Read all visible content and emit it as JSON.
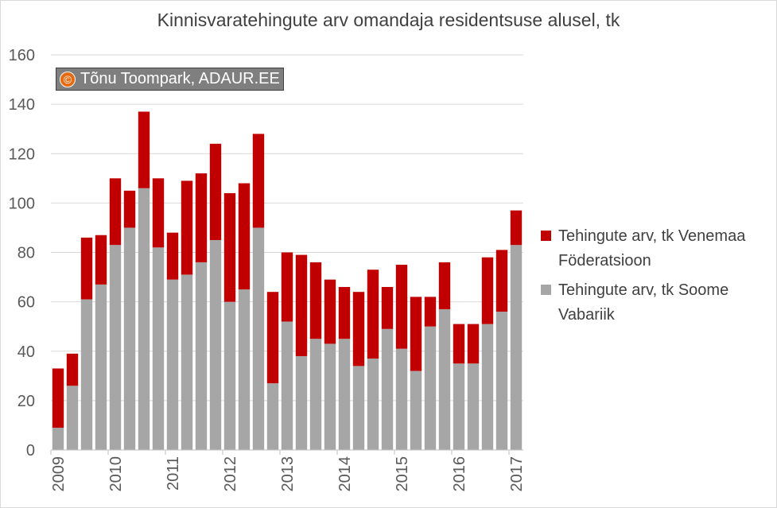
{
  "title": "Kinnisvaratehingute arv omandaja residentsuse alusel, tk",
  "watermark": {
    "symbol": "©",
    "text": "Tõnu Toompark, ADAUR.EE"
  },
  "colors": {
    "venemaa": "#c00000",
    "soome": "#a6a6a6",
    "grid": "#d9d9d9",
    "axis_text": "#595959"
  },
  "chart_data": {
    "type": "bar",
    "stacked": true,
    "ylim": [
      0,
      160
    ],
    "yticks": [
      0,
      20,
      40,
      60,
      80,
      100,
      120,
      140,
      160
    ],
    "grid": true,
    "legend": "right",
    "year_labels": [
      {
        "label": "2009",
        "index": 0
      },
      {
        "label": "2010",
        "index": 4
      },
      {
        "label": "2011",
        "index": 8
      },
      {
        "label": "2012",
        "index": 12
      },
      {
        "label": "2013",
        "index": 16
      },
      {
        "label": "2014",
        "index": 20
      },
      {
        "label": "2015",
        "index": 24
      },
      {
        "label": "2016",
        "index": 28
      },
      {
        "label": "2017",
        "index": 32
      }
    ],
    "series": [
      {
        "name": "Tehingute arv, tk Soome Vabariik",
        "color": "#a6a6a6",
        "values": [
          9,
          26,
          61,
          67,
          83,
          90,
          106,
          82,
          69,
          71,
          76,
          85,
          60,
          65,
          90,
          27,
          52,
          38,
          45,
          43,
          45,
          34,
          37,
          49,
          41,
          32,
          50,
          57,
          35,
          35,
          51,
          56,
          83
        ]
      },
      {
        "name": "Tehingute arv, tk Venemaa Föderatsioon",
        "color": "#c00000",
        "values": [
          24,
          13,
          25,
          20,
          27,
          15,
          31,
          28,
          19,
          38,
          36,
          39,
          44,
          43,
          38,
          37,
          28,
          41,
          31,
          26,
          21,
          30,
          36,
          17,
          34,
          30,
          12,
          19,
          16,
          16,
          27,
          25,
          14
        ]
      }
    ]
  },
  "legend": {
    "items": [
      {
        "label": "Tehingute arv, tk Venemaa Föderatsioon",
        "color": "#c00000"
      },
      {
        "label": "Tehingute arv, tk Soome Vabariik",
        "color": "#a6a6a6"
      }
    ]
  }
}
